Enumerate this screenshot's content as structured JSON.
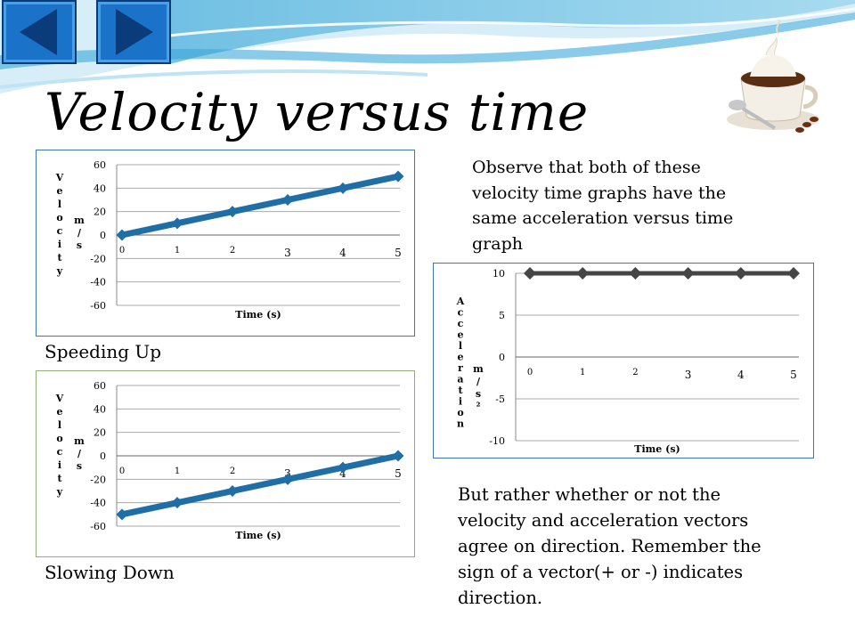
{
  "slide": {
    "title": "Velocity versus time",
    "observe_text": "Observe that both of these velocity time graphs have the same acceleration versus time graph",
    "bottom_text": "But rather whether or not the velocity and acceleration vectors agree on direction.  Remember the sign of a vector(+ or -) indicates direction.",
    "speeding_label": "Speeding Up",
    "slowing_label": "Slowing Down"
  },
  "nav": {
    "back_icon": "left-triangle-icon",
    "forward_icon": "right-triangle-icon"
  },
  "colors": {
    "velocity_line": "#1f6fa6",
    "accel_line": "#454545",
    "frame_green": "#8fae78",
    "frame_blue": "#3d76b0",
    "nav_blue": "#1a73c8"
  },
  "chart_data": [
    {
      "id": "speeding",
      "type": "line",
      "xlabel": "Time (s)",
      "ylabel": "Velocity",
      "yunit": "m/s",
      "x": [
        0,
        1,
        2,
        3,
        4,
        5
      ],
      "values": [
        0,
        10,
        20,
        30,
        40,
        50
      ],
      "yticks": [
        "60",
        "40",
        "20",
        "0",
        "-20",
        "-40",
        "-60"
      ],
      "xticks": [
        "0",
        "1",
        "2",
        "3",
        "4",
        "5"
      ],
      "ylim": [
        -60,
        60
      ],
      "grid": true
    },
    {
      "id": "slowing",
      "type": "line",
      "xlabel": "Time (s)",
      "ylabel": "Velocity",
      "yunit": "m/s",
      "x": [
        0,
        1,
        2,
        3,
        4,
        5
      ],
      "values": [
        -50,
        -40,
        -30,
        -20,
        -10,
        0
      ],
      "yticks": [
        "60",
        "40",
        "20",
        "0",
        "-20",
        "-40",
        "-60"
      ],
      "xticks": [
        "0",
        "1",
        "2",
        "3",
        "4",
        "5"
      ],
      "ylim": [
        -60,
        60
      ],
      "grid": true
    },
    {
      "id": "acceleration",
      "type": "line",
      "xlabel": "Time (s)",
      "ylabel": "Acceleration",
      "yunit": "m/s²",
      "x": [
        0,
        1,
        2,
        3,
        4,
        5
      ],
      "values": [
        10,
        10,
        10,
        10,
        10,
        10
      ],
      "yticks": [
        "10",
        "5",
        "0",
        "-5",
        "-10"
      ],
      "xticks": [
        "0",
        "1",
        "2",
        "3",
        "4",
        "5"
      ],
      "ylim": [
        -10,
        10
      ],
      "grid": true
    }
  ]
}
